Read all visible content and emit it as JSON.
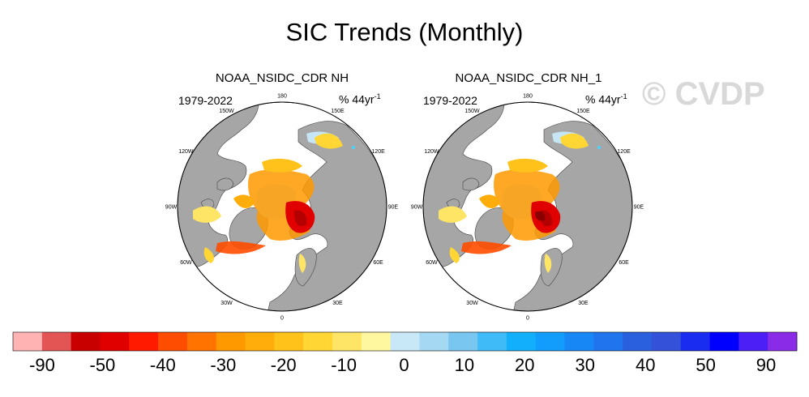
{
  "title": "SIC Trends (Monthly)",
  "watermark": "© CVDP",
  "colors": {
    "land": "#a6a6a6",
    "ocean": "#ffffff",
    "coast": "#555555",
    "ice_pale_blue": "#c6e6f5"
  },
  "chart_data": [
    {
      "type": "heatmap",
      "projection": "north polar stereographic",
      "title": "NOAA_NSIDC_CDR NH",
      "period": "1979-2022",
      "units": "% 44yr",
      "units_exp": "-1",
      "longitude_labels": [
        "180",
        "150E",
        "120E",
        "90E",
        "60E",
        "30E",
        "0",
        "30W",
        "60W",
        "90W",
        "120W",
        "150W"
      ]
    },
    {
      "type": "heatmap",
      "projection": "north polar stereographic",
      "title": "NOAA_NSIDC_CDR NH_1",
      "period": "1979-2022",
      "units": "% 44yr",
      "units_exp": "-1",
      "longitude_labels": [
        "180",
        "150E",
        "120E",
        "90E",
        "60E",
        "30E",
        "0",
        "30W",
        "60W",
        "90W",
        "120W",
        "150W"
      ]
    }
  ],
  "colorbar": {
    "tick_labels": [
      "-90",
      "-50",
      "-40",
      "-30",
      "-20",
      "-10",
      "0",
      "10",
      "20",
      "30",
      "40",
      "50",
      "90"
    ],
    "colors": [
      "#ffb3b3",
      "#e35454",
      "#c80000",
      "#e00000",
      "#ff1a00",
      "#ff4d00",
      "#ff7300",
      "#ff9900",
      "#ffad0a",
      "#ffc21a",
      "#ffd633",
      "#ffe566",
      "#fff7a0",
      "#c9e8f7",
      "#a5d8f3",
      "#79c6f1",
      "#3fbcf8",
      "#12b0fc",
      "#129cfb",
      "#1887f6",
      "#2074ed",
      "#2a60de",
      "#3352d9",
      "#1a2cf0",
      "#0000ff",
      "#4b1ff5",
      "#8a2be8"
    ]
  }
}
